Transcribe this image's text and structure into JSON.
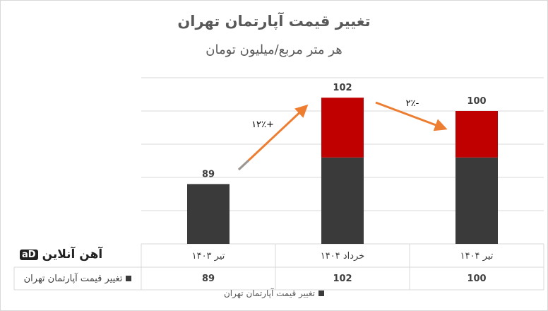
{
  "chart_data": {
    "type": "bar",
    "title": "تغییر قیمت آپارتمان تهران",
    "subtitle": "هر متر مربع/میلیون تومان",
    "categories": [
      "تیر ۱۴۰۳",
      "خرداد ۱۴۰۴",
      "تیر ۱۴۰۴"
    ],
    "series": [
      {
        "name": "تغییر قیمت آپارتمان تهران",
        "values": [
          89,
          102,
          100
        ]
      }
    ],
    "value_labels": [
      "89",
      "102",
      "100"
    ],
    "ylim": [
      80,
      105
    ],
    "grid": true,
    "annotations": [
      {
        "text": "+۱۲٪",
        "direction": "up"
      },
      {
        "text": "-۲٪",
        "direction": "down"
      }
    ],
    "legend": "bottom",
    "colors": {
      "bar": "#3a3a3a",
      "highlight": "#c00000",
      "arrow": "#ed7d31",
      "grid": "#d9d9d9"
    }
  },
  "logo": {
    "text": "آهن آنلاین",
    "mark": "aD"
  }
}
